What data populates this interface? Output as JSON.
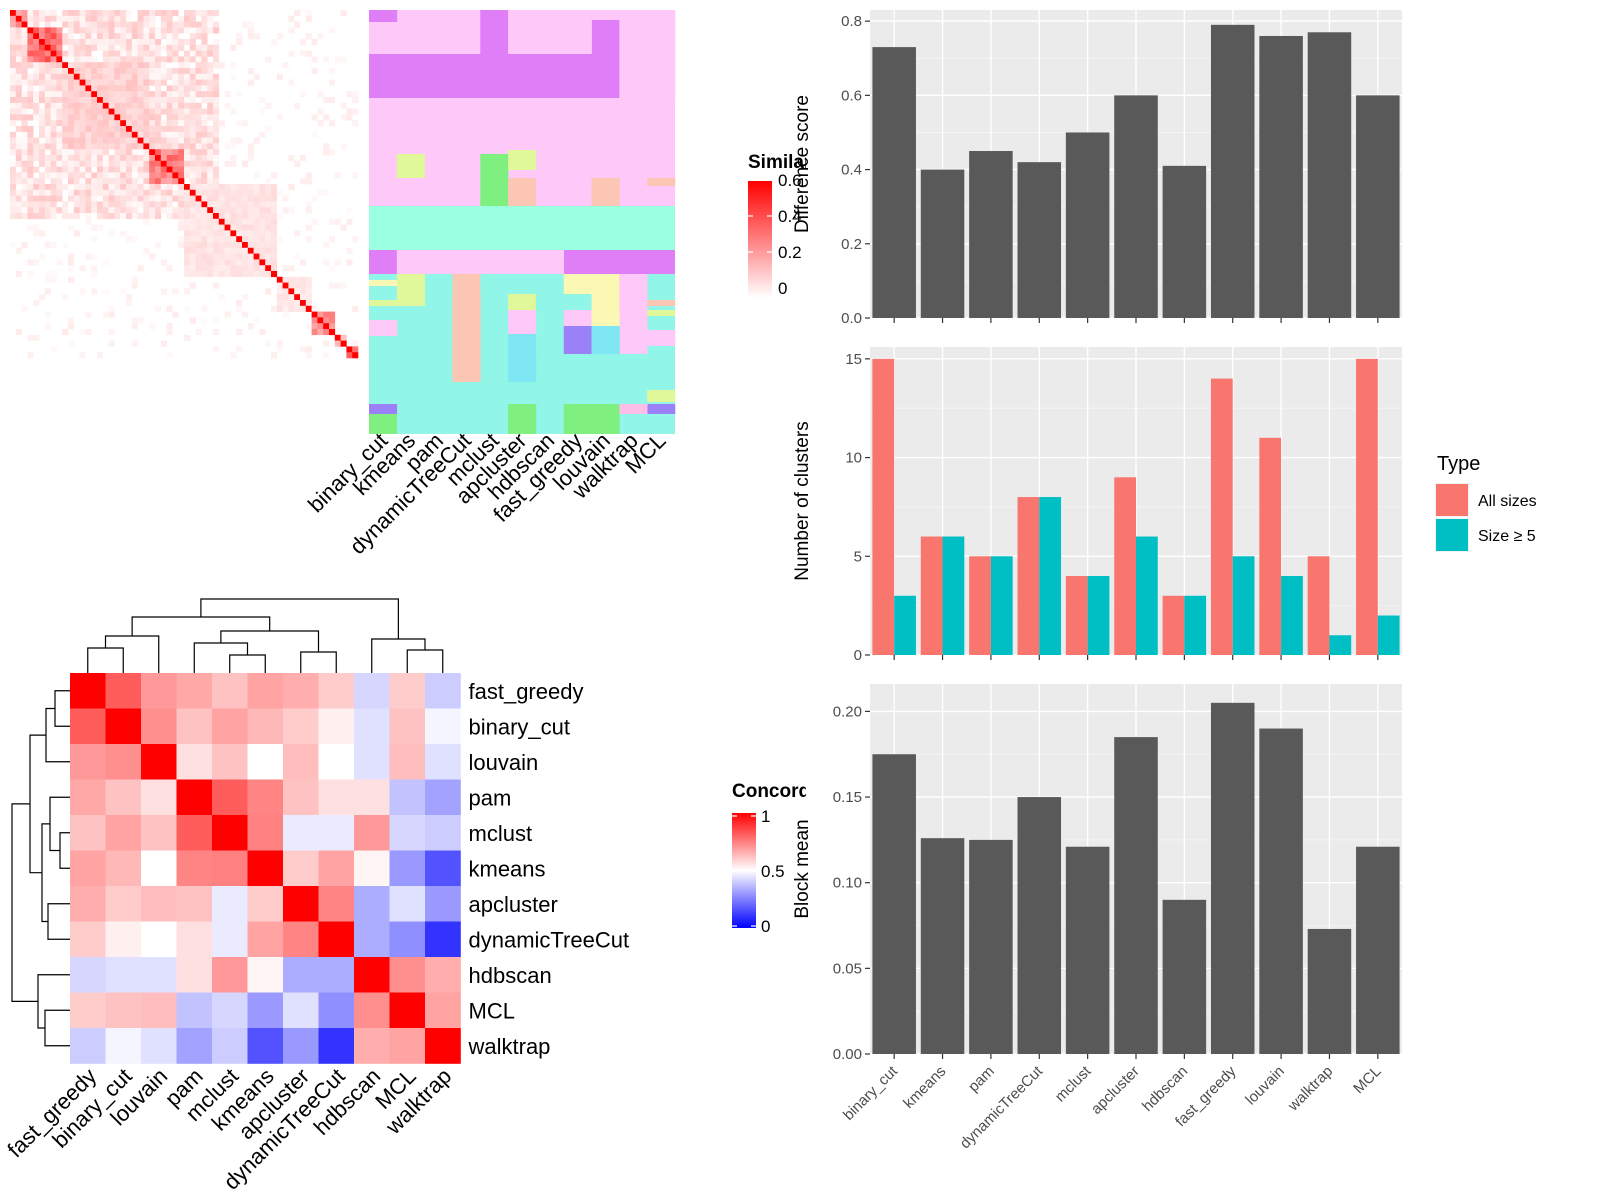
{
  "colors": {
    "bar_dark": "#595959",
    "all_sizes": "#F8766D",
    "size_ge_5": "#00BFC4",
    "similarity_high": "#ff0000",
    "concordance_high": "#ff0000",
    "concordance_mid": "#ffffff",
    "concordance_low": "#0000ff",
    "panel_background": "#ebebeb"
  },
  "methods": [
    "binary_cut",
    "kmeans",
    "pam",
    "dynamicTreeCut",
    "mclust",
    "apcluster",
    "hdbscan",
    "fast_greedy",
    "louvain",
    "walktrap",
    "MCL"
  ],
  "similarity_legend": {
    "title": "Similarity",
    "ticks": [
      "0.6",
      "0.4",
      "0.2",
      "0"
    ]
  },
  "concordance_legend": {
    "title": "Concordance",
    "ticks": [
      "1",
      "0.5",
      "0"
    ]
  },
  "chart_data": [
    {
      "type": "heatmap",
      "title": "",
      "description_name": "similarity-matrix",
      "n": 60,
      "blocks": [
        {
          "start": 0,
          "end": 3,
          "intensity": 0.5
        },
        {
          "start": 3,
          "end": 9,
          "intensity": 0.6
        },
        {
          "start": 9,
          "end": 24,
          "intensity": 0.2
        },
        {
          "start": 24,
          "end": 30,
          "intensity": 0.55
        },
        {
          "start": 30,
          "end": 46,
          "intensity": 0.12
        },
        {
          "start": 46,
          "end": 52,
          "intensity": 0.1
        },
        {
          "start": 52,
          "end": 56,
          "intensity": 0.45
        },
        {
          "start": 56,
          "end": 58,
          "intensity": 0.3
        },
        {
          "start": 58,
          "end": 60,
          "intensity": 0.6
        }
      ]
    },
    {
      "type": "heatmap",
      "description_name": "cluster-assignment-matrix",
      "columns": [
        "binary_cut",
        "kmeans",
        "pam",
        "dynamicTreeCut",
        "mclust",
        "apcluster",
        "hdbscan",
        "fast_greedy",
        "louvain",
        "walktrap",
        "MCL"
      ]
    },
    {
      "type": "heatmap",
      "description_name": "concordance-matrix",
      "rows": [
        "fast_greedy",
        "binary_cut",
        "louvain",
        "pam",
        "mclust",
        "kmeans",
        "apcluster",
        "dynamicTreeCut",
        "hdbscan",
        "MCL",
        "walktrap"
      ],
      "columns": [
        "fast_greedy",
        "binary_cut",
        "louvain",
        "pam",
        "mclust",
        "kmeans",
        "apcluster",
        "dynamicTreeCut",
        "hdbscan",
        "MCL",
        "walktrap"
      ],
      "values": [
        [
          1.0,
          0.82,
          0.7,
          0.67,
          0.62,
          0.68,
          0.66,
          0.6,
          0.42,
          0.6,
          0.4
        ],
        [
          0.82,
          1.0,
          0.72,
          0.62,
          0.68,
          0.64,
          0.6,
          0.53,
          0.44,
          0.62,
          0.48
        ],
        [
          0.7,
          0.72,
          1.0,
          0.56,
          0.62,
          0.5,
          0.63,
          0.5,
          0.44,
          0.63,
          0.44
        ],
        [
          0.67,
          0.62,
          0.56,
          1.0,
          0.82,
          0.74,
          0.62,
          0.56,
          0.56,
          0.38,
          0.32
        ],
        [
          0.62,
          0.68,
          0.62,
          0.82,
          1.0,
          0.75,
          0.46,
          0.46,
          0.7,
          0.42,
          0.4
        ],
        [
          0.68,
          0.64,
          0.5,
          0.74,
          0.75,
          1.0,
          0.6,
          0.68,
          0.52,
          0.3,
          0.16
        ],
        [
          0.66,
          0.6,
          0.63,
          0.62,
          0.46,
          0.6,
          1.0,
          0.74,
          0.34,
          0.44,
          0.3
        ],
        [
          0.6,
          0.53,
          0.5,
          0.56,
          0.46,
          0.68,
          0.74,
          1.0,
          0.34,
          0.28,
          0.1
        ],
        [
          0.42,
          0.44,
          0.44,
          0.56,
          0.7,
          0.52,
          0.34,
          0.34,
          1.0,
          0.72,
          0.66
        ],
        [
          0.6,
          0.62,
          0.63,
          0.38,
          0.42,
          0.3,
          0.44,
          0.28,
          0.72,
          1.0,
          0.68
        ],
        [
          0.4,
          0.48,
          0.44,
          0.32,
          0.4,
          0.16,
          0.3,
          0.1,
          0.66,
          0.68,
          1.0
        ]
      ],
      "color_range": [
        0,
        1
      ]
    },
    {
      "type": "bar",
      "description_name": "difference-score",
      "categories": [
        "binary_cut",
        "kmeans",
        "pam",
        "dynamicTreeCut",
        "mclust",
        "apcluster",
        "hdbscan",
        "fast_greedy",
        "louvain",
        "walktrap",
        "MCL"
      ],
      "values": [
        0.73,
        0.4,
        0.45,
        0.42,
        0.5,
        0.6,
        0.41,
        0.79,
        0.76,
        0.77,
        0.6
      ],
      "xlabel": "",
      "ylabel": "Difference score",
      "ylim": [
        0,
        0.83
      ],
      "yticks": [
        0.0,
        0.2,
        0.4,
        0.6,
        0.8
      ],
      "ytick_labels": [
        "0.0",
        "0.2",
        "0.4",
        "0.6",
        "0.8"
      ],
      "grid": true
    },
    {
      "type": "bar",
      "description_name": "number-of-clusters",
      "categories": [
        "binary_cut",
        "kmeans",
        "pam",
        "dynamicTreeCut",
        "mclust",
        "apcluster",
        "hdbscan",
        "fast_greedy",
        "louvain",
        "walktrap",
        "MCL"
      ],
      "series": [
        {
          "name": "All sizes",
          "values": [
            15,
            6,
            5,
            8,
            4,
            9,
            3,
            14,
            11,
            5,
            15
          ]
        },
        {
          "name": "Size ≥ 5",
          "values": [
            3,
            6,
            5,
            8,
            4,
            6,
            3,
            5,
            4,
            1,
            2
          ]
        }
      ],
      "xlabel": "",
      "ylabel": "Number of clusters",
      "ylim": [
        0,
        15.6
      ],
      "yticks": [
        0,
        5,
        10,
        15
      ],
      "ytick_labels": [
        "0",
        "5",
        "10",
        "15"
      ],
      "legend_title": "Type",
      "legend_position": "right",
      "grid": true
    },
    {
      "type": "bar",
      "description_name": "block-mean",
      "categories": [
        "binary_cut",
        "kmeans",
        "pam",
        "dynamicTreeCut",
        "mclust",
        "apcluster",
        "hdbscan",
        "fast_greedy",
        "louvain",
        "walktrap",
        "MCL"
      ],
      "values": [
        0.175,
        0.126,
        0.125,
        0.15,
        0.121,
        0.185,
        0.09,
        0.205,
        0.19,
        0.073,
        0.121
      ],
      "xlabel": "",
      "ylabel": "Block mean",
      "ylim": [
        0,
        0.216
      ],
      "yticks": [
        0.0,
        0.05,
        0.1,
        0.15,
        0.2
      ],
      "ytick_labels": [
        "0.00",
        "0.05",
        "0.10",
        "0.15",
        "0.20"
      ],
      "grid": true
    }
  ]
}
